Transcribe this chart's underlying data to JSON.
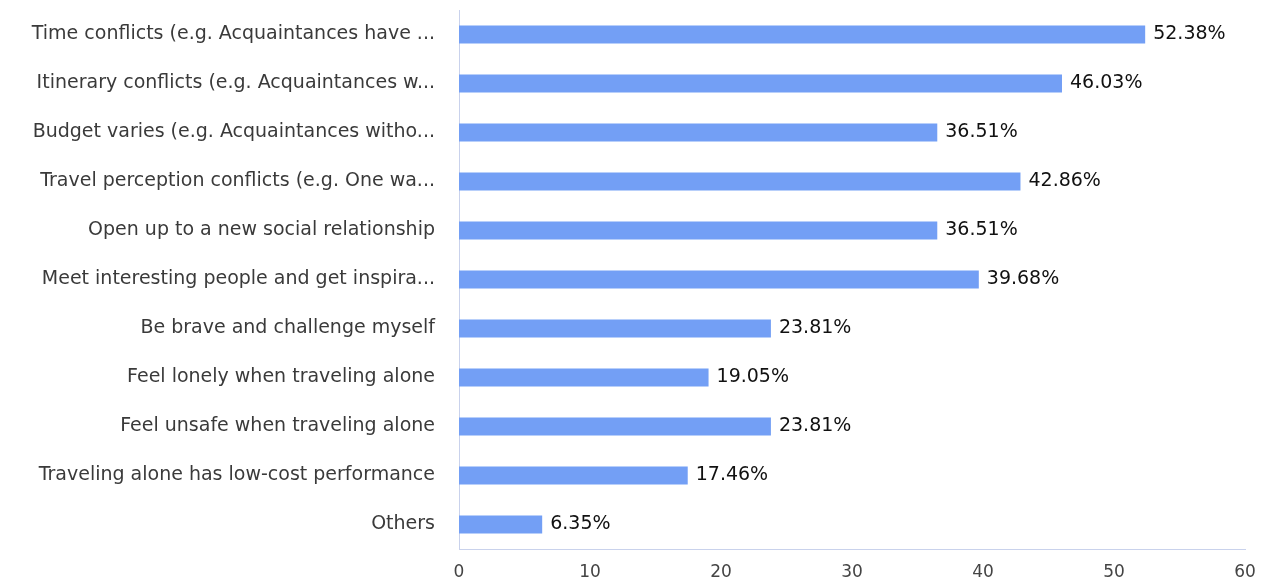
{
  "chart_data": {
    "type": "bar",
    "orientation": "horizontal",
    "categories": [
      "Time conflicts (e.g. Acquaintances have ...",
      "Itinerary conflicts (e.g. Acquaintances w...",
      "Budget varies (e.g. Acquaintances witho...",
      "Travel perception conflicts (e.g. One wa...",
      "Open up to a new social relationship",
      "Meet interesting people and get inspira...",
      "Be brave and challenge myself",
      "Feel lonely when traveling alone",
      "Feel unsafe when traveling alone",
      "Traveling alone has low-cost performance",
      "Others"
    ],
    "values": [
      52.38,
      46.03,
      36.51,
      42.86,
      36.51,
      39.68,
      23.81,
      19.05,
      23.81,
      17.46,
      6.35
    ],
    "value_labels": [
      "52.38%",
      "46.03%",
      "36.51%",
      "42.86%",
      "36.51%",
      "39.68%",
      "23.81%",
      "19.05%",
      "23.81%",
      "17.46%",
      "6.35%"
    ],
    "color": "#739ff5",
    "xlim": [
      0,
      60
    ],
    "xticks": [
      0,
      10,
      20,
      30,
      40,
      50,
      60
    ],
    "grid": false,
    "legend": false
  }
}
